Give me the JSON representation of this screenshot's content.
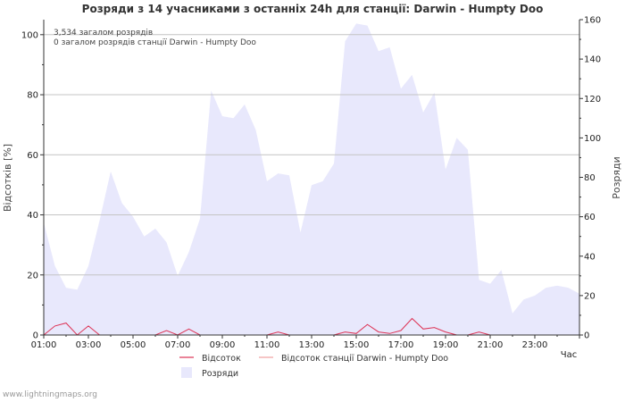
{
  "chart_data": {
    "type": "area",
    "title": "Розряди з 14 учасниками з останніх 24h для станції: Darwin - Humpty Doo",
    "xlabel": "Час",
    "ylabel_left": "Відсотків   [%]",
    "ylabel_right": "Розряди",
    "info_lines": [
      "3,534 загалом розрядів",
      "0 загалом розрядів станції Darwin - Humpty Doo"
    ],
    "x_tick_labels": [
      "01:00",
      "03:00",
      "05:00",
      "07:00",
      "09:00",
      "11:00",
      "13:00",
      "15:00",
      "17:00",
      "19:00",
      "21:00",
      "23:00"
    ],
    "x_range": [
      1,
      25
    ],
    "y_left_range": [
      0,
      105
    ],
    "y_left_ticks": [
      0,
      20,
      40,
      60,
      80,
      100
    ],
    "y_right_range": [
      0,
      160
    ],
    "y_right_ticks": [
      0,
      20,
      40,
      60,
      80,
      100,
      120,
      140,
      160
    ],
    "series": [
      {
        "name": "Розряди",
        "axis": "right",
        "kind": "area",
        "color": "#e8e8fc",
        "x": [
          1.0,
          1.5,
          2.0,
          2.5,
          3.0,
          3.5,
          4.0,
          4.5,
          5.0,
          5.5,
          6.0,
          6.5,
          7.0,
          7.5,
          8.0,
          8.5,
          9.0,
          9.5,
          10.0,
          10.5,
          11.0,
          11.5,
          12.0,
          12.5,
          13.0,
          13.5,
          14.0,
          14.5,
          15.0,
          15.5,
          16.0,
          16.5,
          17.0,
          17.5,
          18.0,
          18.5,
          19.0,
          19.5,
          20.0,
          20.5,
          21.0,
          21.5,
          22.0,
          22.5,
          23.0,
          23.5,
          24.0,
          24.5,
          25.0
        ],
        "values": [
          57,
          35,
          24,
          23,
          35,
          58,
          83,
          67,
          60,
          50,
          54,
          47,
          30,
          42,
          59,
          124,
          111,
          110,
          117,
          104,
          78,
          82,
          81,
          52,
          76,
          78,
          87,
          149,
          158,
          157,
          144,
          146,
          125,
          132,
          113,
          123,
          84,
          100,
          94,
          28,
          26,
          33,
          11,
          18,
          20,
          24,
          25,
          24,
          21
        ]
      },
      {
        "name": "Відсоток",
        "axis": "left",
        "kind": "line",
        "color": "#dd3355",
        "x": [
          1.0,
          1.5,
          2.0,
          2.5,
          3.0,
          3.5,
          4.0,
          5.0,
          6.0,
          6.5,
          7.0,
          7.5,
          8.0,
          9.0,
          10.0,
          11.0,
          11.5,
          12.0,
          13.0,
          14.0,
          14.5,
          15.0,
          15.5,
          16.0,
          16.5,
          17.0,
          17.5,
          18.0,
          18.5,
          19.0,
          19.5,
          20.0,
          20.5,
          21.0,
          22.0,
          23.0,
          24.0,
          25.0
        ],
        "values": [
          0,
          3,
          4,
          0,
          3,
          0,
          0,
          0,
          0,
          1.5,
          0,
          2,
          0,
          0,
          0,
          0,
          1,
          0,
          0,
          0,
          1,
          0.5,
          3.5,
          1,
          0.5,
          1.5,
          5.5,
          2,
          2.5,
          1,
          0,
          0,
          1,
          0,
          0,
          0,
          0,
          0
        ]
      },
      {
        "name": "Відсоток станції Darwin - Humpty Doo",
        "axis": "left",
        "kind": "line",
        "color": "#f0a0a0",
        "x": [],
        "values": []
      }
    ],
    "legend": {
      "placement": "bottom-center",
      "items": [
        "Відсоток",
        "Відсоток станції Darwin - Humpty Doo",
        "Розряди"
      ]
    }
  },
  "footer": "www.lightningmaps.org"
}
